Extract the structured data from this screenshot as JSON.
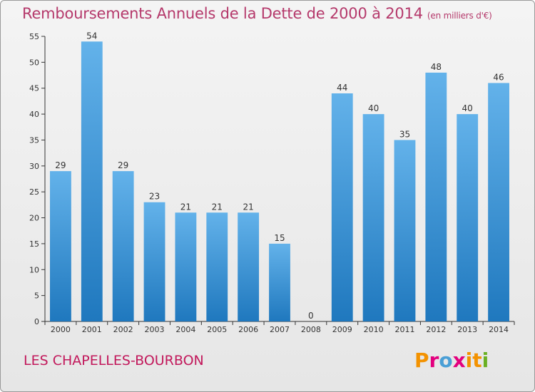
{
  "header": {
    "title": "Remboursements Annuels de la Dette de 2000 à 2014",
    "unit": "(en milliers d'€)"
  },
  "footer": {
    "commune": "LES CHAPELLES-BOURBON",
    "logo": "Proxiti",
    "logo_colors": [
      "#f39200",
      "#e3007e",
      "#4a9fd6",
      "#e3007e",
      "#f39200",
      "#f39200",
      "#6ab023"
    ]
  },
  "chart_data": {
    "type": "bar",
    "title": "Remboursements Annuels de la Dette de 2000 à 2014",
    "xlabel": "",
    "ylabel": "",
    "categories": [
      "2000",
      "2001",
      "2002",
      "2003",
      "2004",
      "2005",
      "2006",
      "2007",
      "2008",
      "2009",
      "2010",
      "2011",
      "2012",
      "2013",
      "2014"
    ],
    "values": [
      29,
      54,
      29,
      23,
      21,
      21,
      21,
      15,
      0,
      44,
      40,
      35,
      48,
      40,
      46
    ],
    "ylim": [
      0,
      55
    ],
    "yticks": [
      0,
      5,
      10,
      15,
      20,
      25,
      30,
      35,
      40,
      45,
      50,
      55
    ],
    "grid": false,
    "colors": {
      "bar_top": "#63b2ea",
      "bar_bottom": "#1f78be",
      "axis": "#333333"
    }
  }
}
